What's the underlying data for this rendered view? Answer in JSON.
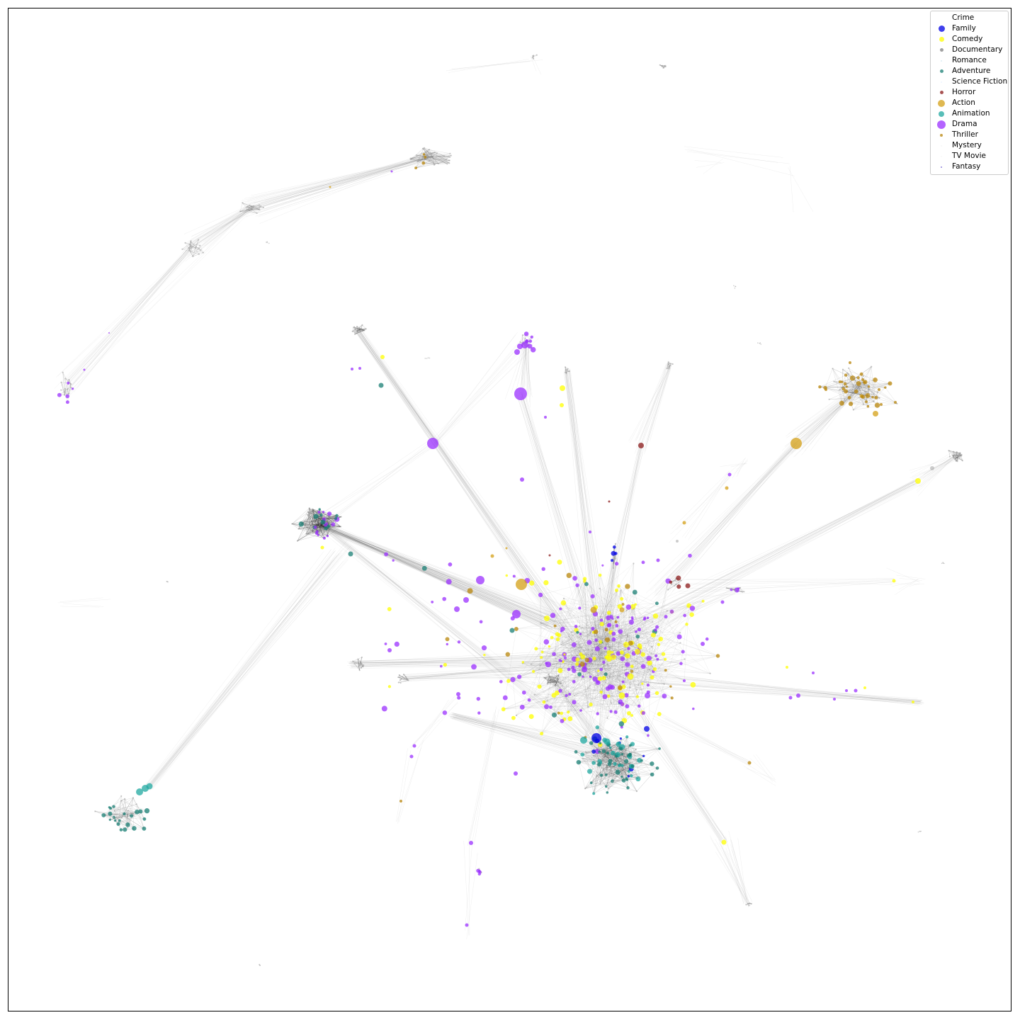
{
  "legend": {
    "items": [
      {
        "label": "Crime",
        "color": "#ffffff",
        "size": 2
      },
      {
        "label": "Family",
        "color": "#0000e6",
        "size": 9
      },
      {
        "label": "Comedy",
        "color": "#ffff00",
        "size": 7
      },
      {
        "label": "Documentary",
        "color": "#808080",
        "size": 5
      },
      {
        "label": "Romance",
        "color": "#cfe8f0",
        "size": 2
      },
      {
        "label": "Adventure",
        "color": "#1a7f74",
        "size": 5
      },
      {
        "label": "Science Fiction",
        "color": "#e6f0ff",
        "size": 2
      },
      {
        "label": "Horror",
        "color": "#8b1a1a",
        "size": 5
      },
      {
        "label": "Action",
        "color": "#d4a017",
        "size": 10
      },
      {
        "label": "Animation",
        "color": "#20a8a0",
        "size": 8
      },
      {
        "label": "Drama",
        "color": "#9b30ff",
        "size": 12
      },
      {
        "label": "Thriller",
        "color": "#b8860b",
        "size": 4
      },
      {
        "label": "Mystery",
        "color": "#f2f2f2",
        "size": 2
      },
      {
        "label": "TV Movie",
        "color": "#f5f5f5",
        "size": 2
      },
      {
        "label": "Fantasy",
        "color": "#6a5acd",
        "size": 2
      }
    ]
  }
}
